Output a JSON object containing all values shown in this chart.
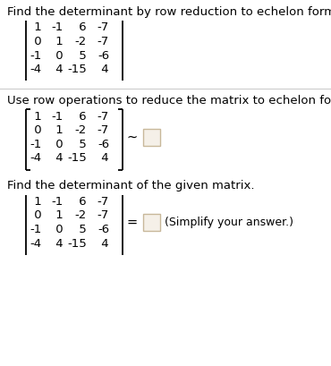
{
  "title1": "Find the determinant by row reduction to echelon form.",
  "title2": "Use row operations to reduce the matrix to echelon form.",
  "title3": "Find the determinant of the given matrix.",
  "matrix_rows": [
    [
      " 1",
      "-1",
      " 6",
      "-7"
    ],
    [
      " 0",
      " 1",
      "-2",
      "-7"
    ],
    [
      "-1",
      " 0",
      " 5",
      "-6"
    ],
    [
      "-4",
      " 4",
      "-15",
      " 4"
    ]
  ],
  "simplify_text": "(Simplify your answer.)",
  "bg_color": "#ffffff",
  "text_color": "#000000",
  "font_size": 9.5,
  "small_font": 9.0,
  "box_fill": "#f5f0e8",
  "box_edge": "#c8b89a",
  "sep_color": "#cccccc"
}
